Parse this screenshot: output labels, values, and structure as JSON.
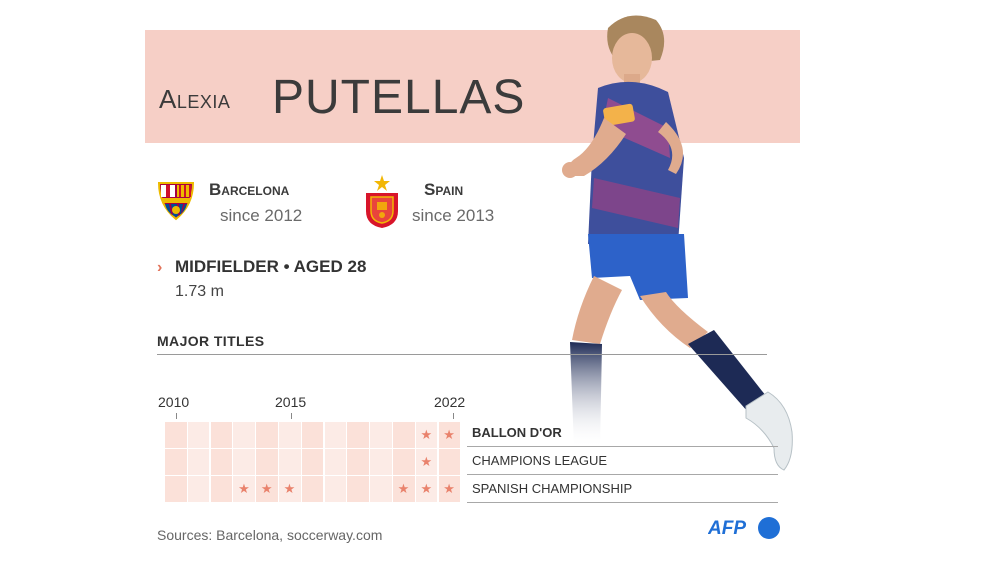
{
  "player": {
    "first_name": "Alexia",
    "last_name": "PUTELLAS"
  },
  "club": {
    "name": "Barcelona",
    "since": "since 2012",
    "crest_icon": "fc-barcelona-crest-icon"
  },
  "national_team": {
    "name": "Spain",
    "since": "since 2013",
    "crest_icon": "spain-crest-icon"
  },
  "profile": {
    "chevron": "›",
    "position": "MIDFIELDER • AGED 28",
    "height": "1.73 m"
  },
  "titles": {
    "heading": "MAJOR TITLES",
    "years": [
      "2010",
      "2015",
      "2022"
    ],
    "rows": [
      {
        "label": "BALLON D'OR",
        "emphasis": true,
        "stars": [
          "2021",
          "2022"
        ]
      },
      {
        "label": "CHAMPIONS LEAGUE",
        "emphasis": false,
        "stars": [
          "2021"
        ]
      },
      {
        "label": "SPANISH CHAMPIONSHIP",
        "emphasis": false,
        "stars": [
          "2013",
          "2014",
          "2015",
          "2020",
          "2021",
          "2022"
        ]
      }
    ]
  },
  "footer": {
    "sources": "Sources: Barcelona, soccerway.com",
    "agency": "AFP"
  },
  "colors": {
    "banner": "#f6cfc6",
    "accent": "#e2735a",
    "star": "#e9826c",
    "grid_cell": "#fbe1d9",
    "afp_blue": "#1f6fd6"
  }
}
